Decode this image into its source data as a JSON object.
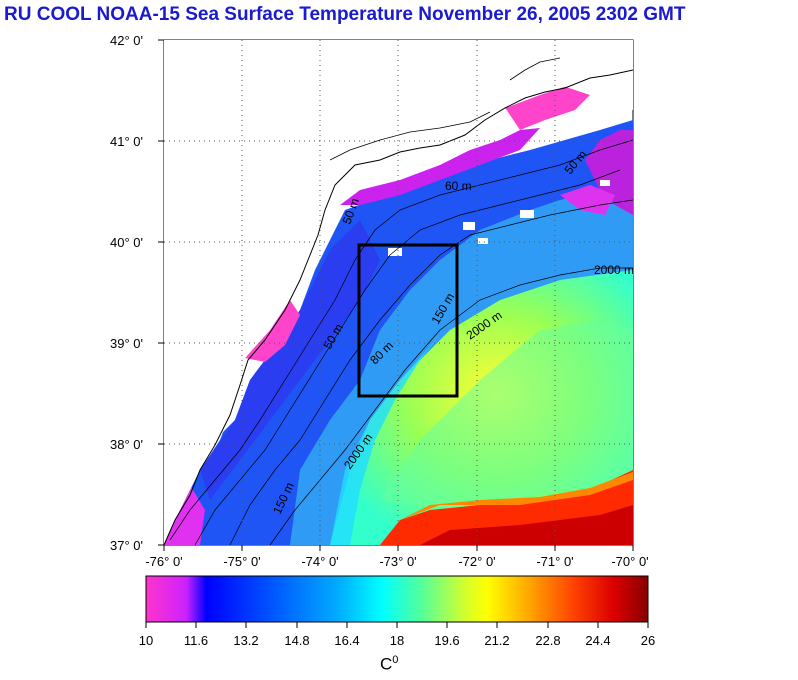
{
  "title": "RU COOL  NOAA-15 Sea Surface Temperature November 26, 2005 2302 GMT",
  "map": {
    "lat_ticks": [
      "42° 0'",
      "41° 0'",
      "40° 0'",
      "39° 0'",
      "38° 0'",
      "37° 0'"
    ],
    "lon_ticks": [
      "-76° 0'",
      "-75° 0'",
      "-74° 0'",
      "-73° 0'",
      "-72° 0'",
      "-71° 0'",
      "-70° 0'"
    ],
    "extent": {
      "lon_min": -76,
      "lon_max": -70,
      "lat_min": 37,
      "lat_max": 42
    },
    "study_box": {
      "lon_min": -73.35,
      "lon_max": -72.35,
      "lat_min": 38.5,
      "lat_max": 40.0
    },
    "contour_labels": [
      "50 m",
      "60 m",
      "80 m",
      "150 m",
      "2000 m"
    ]
  },
  "colorbar": {
    "ticks": [
      "10",
      "11.6",
      "13.2",
      "14.8",
      "16.4",
      "18",
      "19.6",
      "21.2",
      "22.8",
      "24.4",
      "26"
    ],
    "unit": "C",
    "unit_sup": "0",
    "range": [
      10,
      26
    ],
    "stops": [
      "#ff33cc",
      "#cc22ff",
      "#0000ff",
      "#0055ff",
      "#00aaff",
      "#00ffff",
      "#55ff99",
      "#ccff33",
      "#ffff00",
      "#ffaa00",
      "#ff4400",
      "#dd0000",
      "#880000"
    ]
  }
}
